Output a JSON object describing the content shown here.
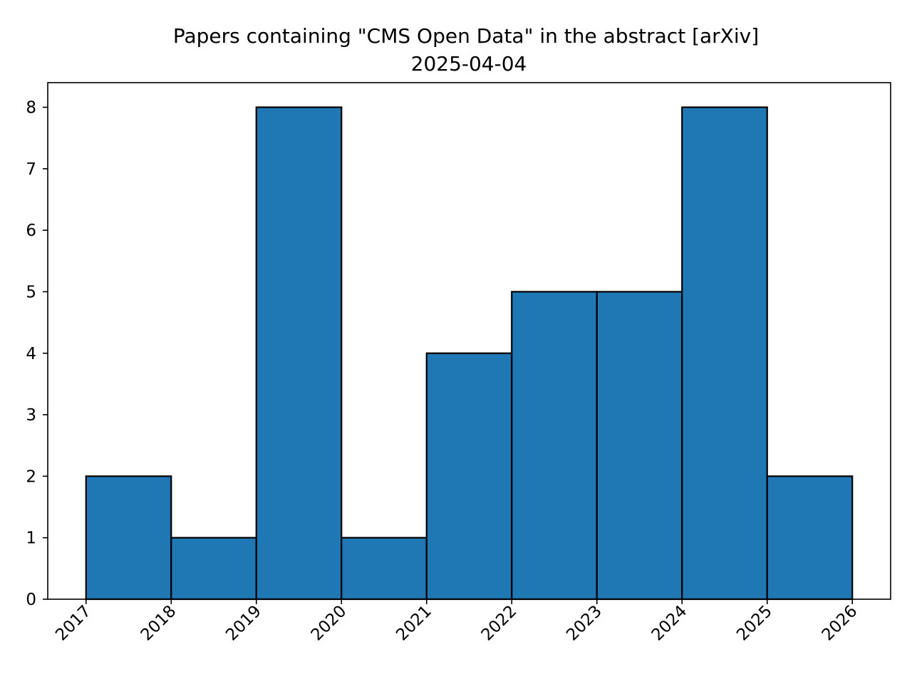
{
  "chart_data": {
    "type": "bar",
    "title": "Papers containing \"CMS Open Data\" in the abstract [arXiv]",
    "subtitle": "2025-04-04",
    "xlabel": "",
    "ylabel": "",
    "bin_edges": [
      2017,
      2018,
      2019,
      2020,
      2021,
      2022,
      2023,
      2024,
      2025,
      2026
    ],
    "values": [
      2,
      1,
      8,
      1,
      4,
      5,
      5,
      8,
      2
    ],
    "x_ticks": [
      "2017",
      "2018",
      "2019",
      "2020",
      "2021",
      "2022",
      "2023",
      "2024",
      "2025",
      "2026"
    ],
    "y_ticks": [
      "0",
      "1",
      "2",
      "3",
      "4",
      "5",
      "6",
      "7",
      "8"
    ],
    "xlim": [
      2016.55,
      2026.45
    ],
    "ylim": [
      0,
      8.4
    ],
    "grid": false,
    "legend": "none",
    "bar_color": "#1f77b4",
    "edge_color": "#000000"
  }
}
